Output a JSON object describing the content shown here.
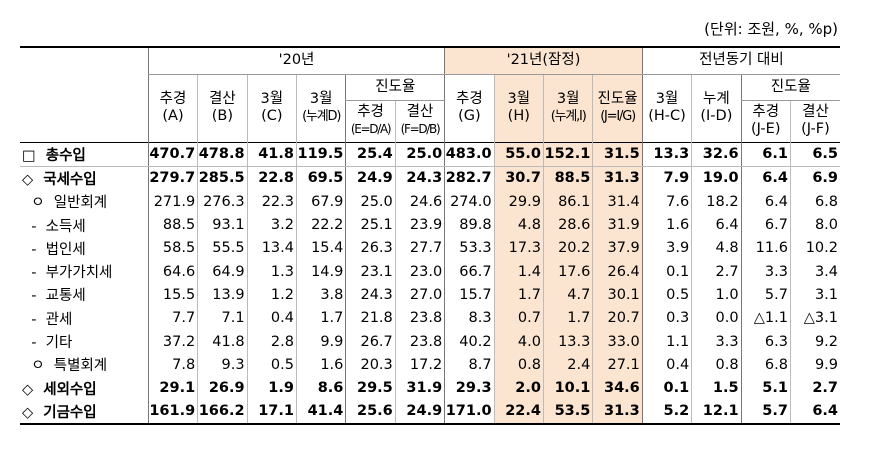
{
  "unit_note": "(단위: 조원, %, %p)",
  "header": {
    "group_20": "'20년",
    "group_21": "'21년(잠정)",
    "group_yoy": "전년동기 대비",
    "progress_20": "진도율",
    "progress_yoy": "진도율",
    "cols": [
      {
        "l1": "추경",
        "l2": "(A)"
      },
      {
        "l1": "결산",
        "l2": "(B)"
      },
      {
        "l1": "3월",
        "l2": "(C)"
      },
      {
        "l1": "3월",
        "l2": "(누계D)"
      },
      {
        "l1": "추경",
        "l2": "(E=D/A)"
      },
      {
        "l1": "결산",
        "l2": "(F=D/B)"
      },
      {
        "l1": "추경",
        "l2": "(G)"
      },
      {
        "l1": "3월",
        "l2": "(H)"
      },
      {
        "l1": "3월",
        "l2": "(누계,I)"
      },
      {
        "l1": "진도율",
        "l2": "(J=I/G)"
      },
      {
        "l1": "3월",
        "l2": "(H-C)"
      },
      {
        "l1": "누계",
        "l2": "(I-D)"
      },
      {
        "l1": "추경",
        "l2": "(J-E)"
      },
      {
        "l1": "결산",
        "l2": "(J-F)"
      }
    ]
  },
  "rows": [
    {
      "label": "□  총수입",
      "bold": true,
      "values": [
        "470.7",
        "478.8",
        "41.8",
        "119.5",
        "25.4",
        "25.0",
        "483.0",
        "55.0",
        "152.1",
        "31.5",
        "13.3",
        "32.6",
        "6.1",
        "6.5"
      ]
    },
    {
      "label": "◇  국세수입",
      "bold": true,
      "values": [
        "279.7",
        "285.5",
        "22.8",
        "69.5",
        "24.9",
        "24.3",
        "282.7",
        "30.7",
        "88.5",
        "31.3",
        "7.9",
        "19.0",
        "6.4",
        "6.9"
      ]
    },
    {
      "label": "  ㅇ  일반회계",
      "bold": false,
      "values": [
        "271.9",
        "276.3",
        "22.3",
        "67.9",
        "25.0",
        "24.6",
        "274.0",
        "29.9",
        "86.1",
        "31.4",
        "7.6",
        "18.2",
        "6.4",
        "6.8"
      ]
    },
    {
      "label": "  -  소득세",
      "bold": false,
      "values": [
        "88.5",
        "93.1",
        "3.2",
        "22.2",
        "25.1",
        "23.9",
        "89.8",
        "4.8",
        "28.6",
        "31.9",
        "1.6",
        "6.4",
        "6.7",
        "8.0"
      ]
    },
    {
      "label": "  -  법인세",
      "bold": false,
      "values": [
        "58.5",
        "55.5",
        "13.4",
        "15.4",
        "26.3",
        "27.7",
        "53.3",
        "17.3",
        "20.2",
        "37.9",
        "3.9",
        "4.8",
        "11.6",
        "10.2"
      ]
    },
    {
      "label": "  -  부가가치세",
      "bold": false,
      "values": [
        "64.6",
        "64.9",
        "1.3",
        "14.9",
        "23.1",
        "23.0",
        "66.7",
        "1.4",
        "17.6",
        "26.4",
        "0.1",
        "2.7",
        "3.3",
        "3.4"
      ]
    },
    {
      "label": "  -  교통세",
      "bold": false,
      "values": [
        "15.5",
        "13.9",
        "1.2",
        "3.8",
        "24.3",
        "27.0",
        "15.7",
        "1.7",
        "4.7",
        "30.1",
        "0.5",
        "1.0",
        "5.7",
        "3.1"
      ]
    },
    {
      "label": "  -  관세",
      "bold": false,
      "values": [
        "7.7",
        "7.1",
        "0.4",
        "1.7",
        "21.8",
        "23.8",
        "8.3",
        "0.7",
        "1.7",
        "20.7",
        "0.3",
        "0.0",
        "△1.1",
        "△3.1"
      ]
    },
    {
      "label": "  -  기타",
      "bold": false,
      "values": [
        "37.2",
        "41.8",
        "2.8",
        "9.9",
        "26.7",
        "23.8",
        "40.2",
        "4.0",
        "13.3",
        "33.0",
        "1.1",
        "3.3",
        "6.3",
        "9.2"
      ]
    },
    {
      "label": "  ㅇ  특별회계",
      "bold": false,
      "values": [
        "7.8",
        "9.3",
        "0.5",
        "1.6",
        "20.3",
        "17.2",
        "8.7",
        "0.8",
        "2.4",
        "27.1",
        "0.4",
        "0.8",
        "6.8",
        "9.9"
      ]
    },
    {
      "label": "◇  세외수입",
      "bold": true,
      "values": [
        "29.1",
        "26.9",
        "1.9",
        "8.6",
        "29.5",
        "31.9",
        "29.3",
        "2.0",
        "10.1",
        "34.6",
        "0.1",
        "1.5",
        "5.1",
        "2.7"
      ]
    },
    {
      "label": "◇  기금수입",
      "bold": true,
      "values": [
        "161.9",
        "166.2",
        "17.1",
        "41.4",
        "25.6",
        "24.9",
        "171.0",
        "22.4",
        "53.5",
        "31.3",
        "5.2",
        "12.1",
        "5.7",
        "6.4"
      ]
    }
  ]
}
